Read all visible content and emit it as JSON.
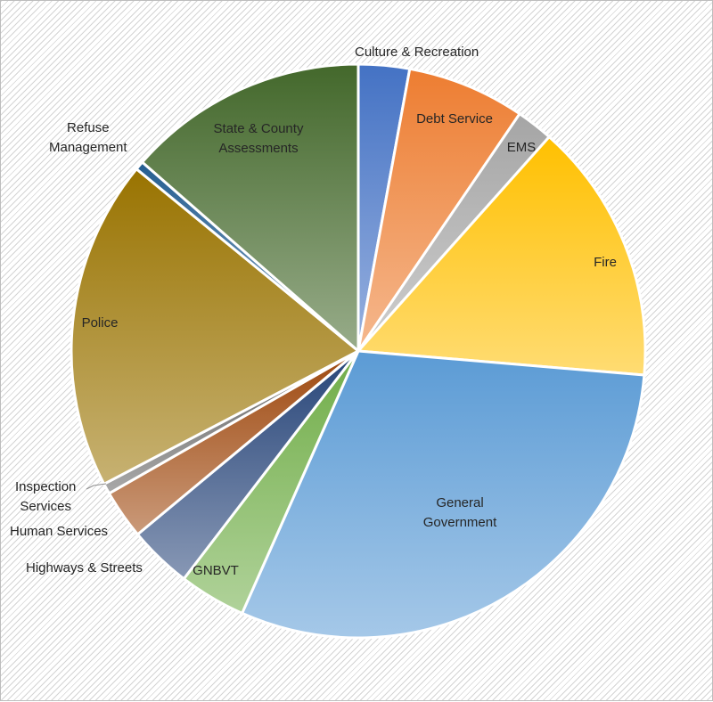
{
  "chart_data": {
    "type": "pie",
    "title": "",
    "legend": "none",
    "slices": [
      {
        "label": "Culture & Recreation",
        "value": 2.9,
        "color": "#4472c4"
      },
      {
        "label": "Debt Service",
        "value": 6.7,
        "color": "#ed7d31"
      },
      {
        "label": "EMS",
        "value": 2.1,
        "color": "#a5a5a5"
      },
      {
        "label": "Fire",
        "value": 14.9,
        "color": "#ffc000"
      },
      {
        "label": "General Government",
        "value": 30.6,
        "color": "#5b9bd5"
      },
      {
        "label": "GNBVT",
        "value": 3.8,
        "color": "#70ad47"
      },
      {
        "label": "Highways & Streets",
        "value": 3.6,
        "color": "#264478"
      },
      {
        "label": "Human Services",
        "value": 2.8,
        "color": "#9e480e"
      },
      {
        "label": "Inspection Services",
        "value": 0.6,
        "color": "#636363"
      },
      {
        "label": "Police",
        "value": 18.8,
        "color": "#997300"
      },
      {
        "label": "Refuse Management",
        "value": 0.5,
        "color": "#255e91"
      },
      {
        "label": "State & County Assessments",
        "value": 13.7,
        "color": "#43682b"
      }
    ]
  },
  "labels": {
    "culture": "Culture & Recreation",
    "debt_line1": "Debt Service",
    "ems": "EMS",
    "fire": "Fire",
    "general_line1": "General",
    "general_line2": "Government",
    "gnbvt": "GNBVT",
    "highways": "Highways & Streets",
    "human": "Human Services",
    "inspection_line1": "Inspection",
    "inspection_line2": "Services",
    "police": "Police",
    "refuse_line1": "Refuse",
    "refuse_line2": "Management",
    "state_line1": "State & County",
    "state_line2": "Assessments"
  }
}
